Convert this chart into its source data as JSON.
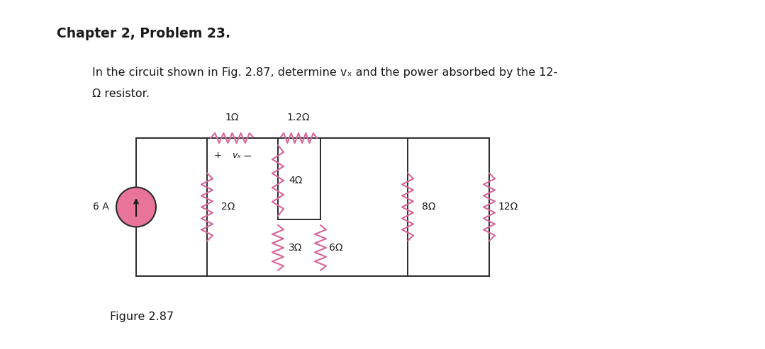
{
  "title": "Chapter 2, Problem 23.",
  "body_text_line1": "In the circuit shown in Fig. 2.87, determine vₓ and the power absorbed by the 12-",
  "body_text_line2": "Ω resistor.",
  "figure_label": "Figure 2.87",
  "background_color": "#ffffff",
  "resistor_color": "#d9649a",
  "wire_color": "#2a2a2a",
  "source_fill": "#e8749a",
  "source_stroke": "#2a2a2a",
  "text_color": "#1a1a1a",
  "R1": "1Ω",
  "R2": "1.2Ω",
  "R3": "2Ω",
  "R4": "4Ω",
  "R5": "3Ω",
  "R6": "6Ω",
  "R7": "8Ω",
  "R8": "12Ω",
  "current_source": "6 A",
  "vx_label": "vₓ"
}
